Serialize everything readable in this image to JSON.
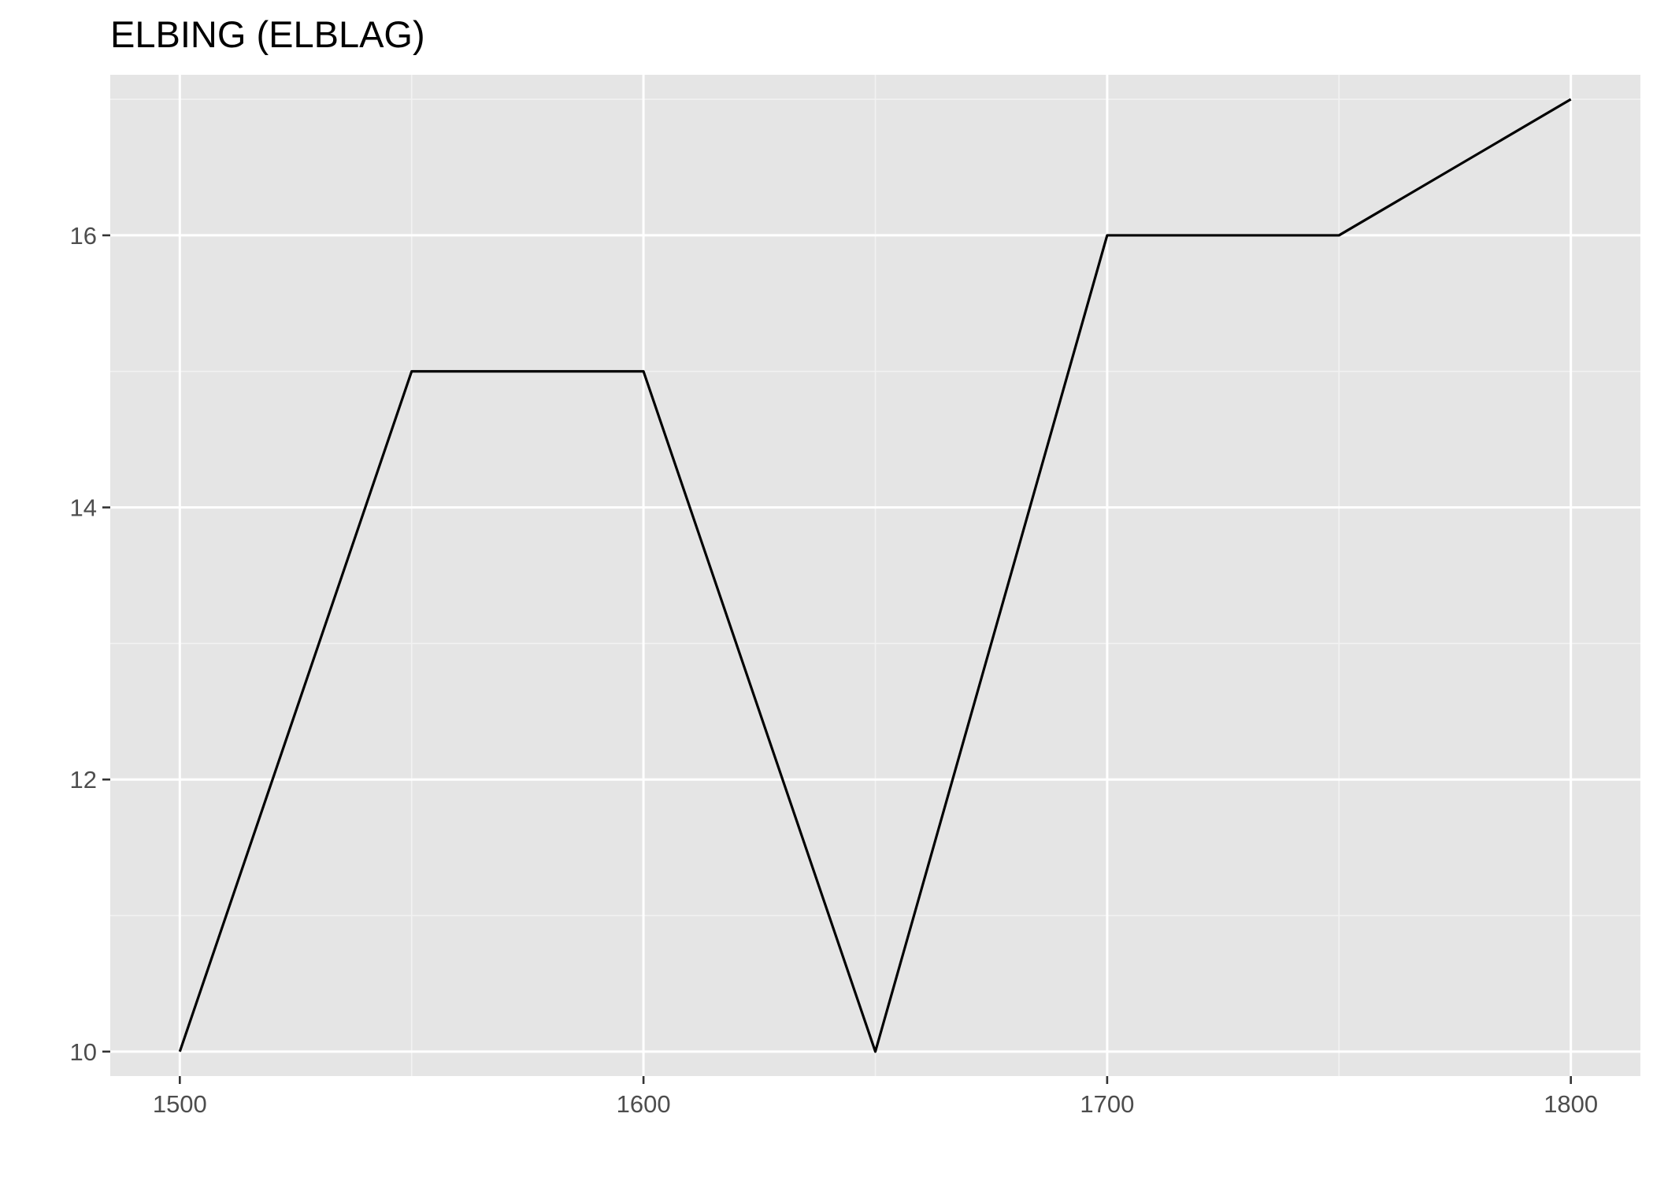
{
  "chart_data": {
    "type": "line",
    "title": "ELBING (ELBLAG)",
    "xlabel": "",
    "ylabel": "",
    "x": [
      1500,
      1550,
      1600,
      1650,
      1700,
      1750,
      1800
    ],
    "series": [
      {
        "values": [
          10,
          15,
          15,
          10,
          16,
          16,
          17
        ]
      }
    ],
    "xlim": [
      1485,
      1815
    ],
    "ylim": [
      9.82,
      17.18
    ],
    "x_ticks": [
      1500,
      1600,
      1700,
      1800
    ],
    "x_tick_labels": [
      "1500",
      "1600",
      "1700",
      "1800"
    ],
    "x_minor_ticks": [
      1550,
      1650,
      1750
    ],
    "y_ticks": [
      10,
      12,
      14,
      16
    ],
    "y_tick_labels": [
      "10",
      "12",
      "14",
      "16"
    ],
    "y_minor_ticks": [
      11,
      13,
      15,
      17
    ],
    "grid": true,
    "legend": "none",
    "colors": {
      "panel_background": "#e5e5e5",
      "grid_major": "#ffffff",
      "grid_minor": "#f2f2f2",
      "line": "#000000",
      "tick_text": "#4d4d4d",
      "tick_mark": "#333333"
    }
  }
}
